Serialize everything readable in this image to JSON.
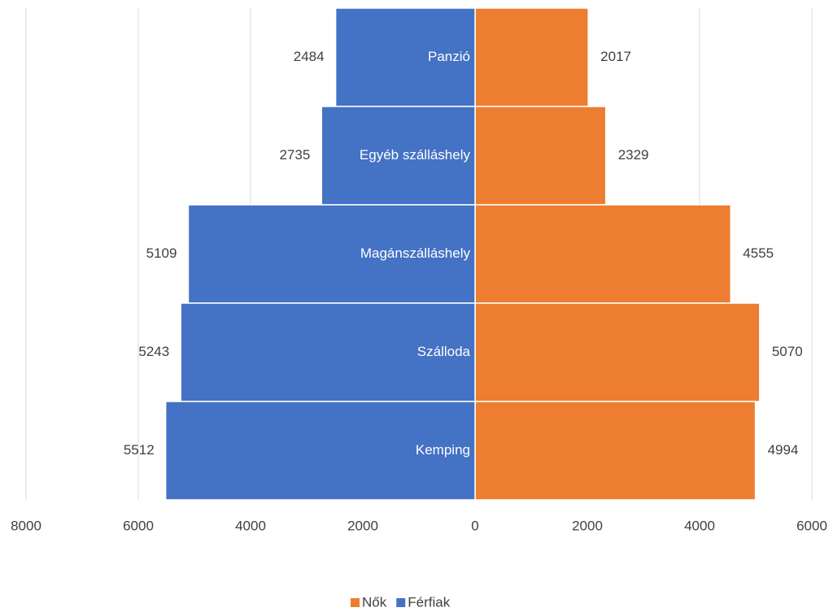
{
  "chart_data": {
    "type": "butterfly",
    "categories": [
      "Panzió",
      "Egyéb szálláshely",
      "Magánszálláshely",
      "Szálloda",
      "Kemping"
    ],
    "series": [
      {
        "name": "Nők",
        "color": "#ed7d31",
        "values": [
          2017,
          2329,
          4555,
          5070,
          4994
        ]
      },
      {
        "name": "Férfiak",
        "color": "#4472c4",
        "values": [
          -2484,
          -2735,
          -5109,
          -5243,
          -5512
        ],
        "value_labels": [
          "2484",
          "2735",
          "5109",
          "5243",
          "5512"
        ]
      }
    ],
    "xlim": [
      -8000,
      6000
    ],
    "xticks": [
      {
        "value": -8000,
        "label": "8000"
      },
      {
        "value": -6000,
        "label": "6000"
      },
      {
        "value": -4000,
        "label": "4000"
      },
      {
        "value": -2000,
        "label": "2000"
      },
      0,
      2000,
      4000,
      6000
    ],
    "grid": true,
    "legend": "bottom"
  }
}
